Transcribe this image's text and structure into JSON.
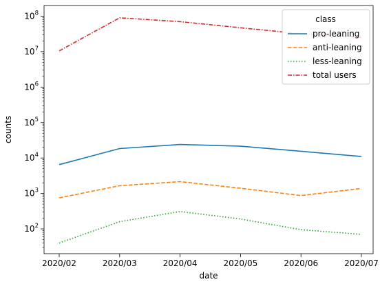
{
  "chart_data": {
    "type": "line",
    "xlabel": "date",
    "ylabel": "counts",
    "yscale": "log",
    "ylim": [
      20,
      200000000
    ],
    "x": [
      "2020/02",
      "2020/03",
      "2020/04",
      "2020/05",
      "2020/06",
      "2020/07"
    ],
    "series": [
      {
        "name": "pro-leaning",
        "color": "#1f77b4",
        "dash": "solid",
        "values": [
          6500,
          18500,
          24000,
          21500,
          15500,
          11000
        ]
      },
      {
        "name": "anti-leaning",
        "color": "#ff7f0e",
        "dash": "dashed",
        "values": [
          750,
          1650,
          2150,
          1400,
          870,
          1380
        ]
      },
      {
        "name": "less-leaning",
        "color": "#2ca02c",
        "dash": "dotted",
        "values": [
          40,
          160,
          310,
          190,
          95,
          70
        ]
      },
      {
        "name": "total users",
        "color": "#d62728",
        "dash": "dashdot",
        "values": [
          10500000,
          90000000,
          70000000,
          47000000,
          32000000,
          25000000
        ]
      }
    ],
    "yticks": [
      {
        "value": 100,
        "base": "10",
        "exp": "2"
      },
      {
        "value": 1000,
        "base": "10",
        "exp": "3"
      },
      {
        "value": 10000,
        "base": "10",
        "exp": "4"
      },
      {
        "value": 100000,
        "base": "10",
        "exp": "5"
      },
      {
        "value": 1000000,
        "base": "10",
        "exp": "6"
      },
      {
        "value": 10000000,
        "base": "10",
        "exp": "7"
      },
      {
        "value": 100000000,
        "base": "10",
        "exp": "8"
      }
    ],
    "legend": {
      "title": "class",
      "position": "top-right"
    },
    "grid": false
  }
}
